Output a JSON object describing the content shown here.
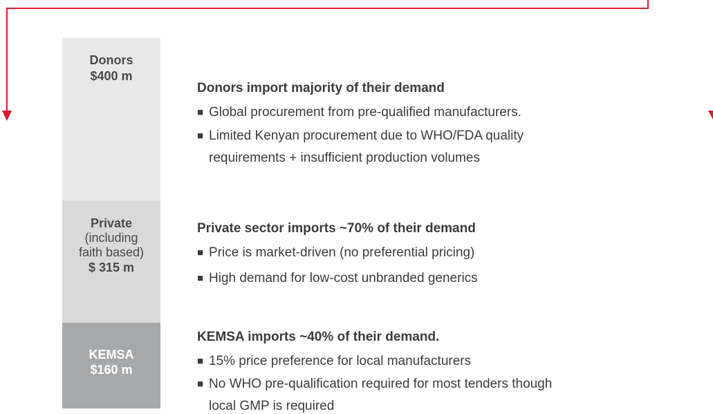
{
  "sections": [
    {
      "label": [
        "Donors",
        "$400 m"
      ],
      "heading": "Donors import majority of their demand",
      "bullets": [
        [
          "Global procurement from pre-qualified manufacturers."
        ],
        [
          "Limited Kenyan procurement due to WHO/FDA quality",
          "requirements + insufficient production volumes"
        ]
      ]
    },
    {
      "label": [
        "Private",
        "(including",
        "faith based)",
        "$ 315 m"
      ],
      "heading": "Private sector imports ~70% of their demand",
      "bullets": [
        [
          "Price is market-driven (no preferential pricing)"
        ],
        [
          "High demand for low-cost unbranded generics"
        ]
      ]
    },
    {
      "label": [
        "KEMSA",
        "$160 m"
      ],
      "heading": "KEMSA imports ~40% of their demand.",
      "bullets": [
        [
          "15% price preference for local manufacturers"
        ],
        [
          "No WHO pre-qualification required for most tenders though",
          "local GMP is required"
        ]
      ]
    }
  ]
}
